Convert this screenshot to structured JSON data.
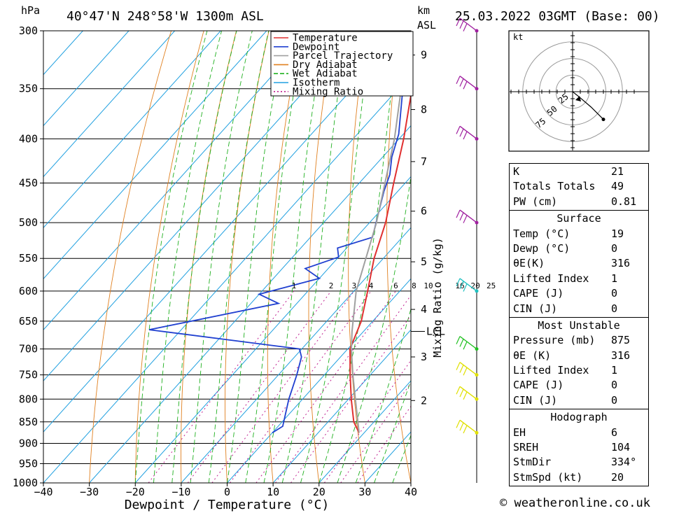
{
  "chart_data": {
    "type": "line",
    "subtype": "skew-t log-p sounding",
    "title": "40°47'N 248°58'W 1300m ASL",
    "date_text": "25.03.2022 03GMT (Base: 00)",
    "ylabel_left": "hPa",
    "ylabel_right_line1": "km",
    "ylabel_right_line2": "ASL",
    "xlabel": "Dewpoint / Temperature (°C)",
    "mixing_axis_label": "Mixing Ratio (g/kg)",
    "lcl_label": "LCL",
    "lcl_pressure": 668,
    "pressure_levels": [
      300,
      350,
      400,
      450,
      500,
      550,
      600,
      650,
      700,
      750,
      800,
      850,
      900,
      950,
      1000
    ],
    "pressure_labels": [
      "300",
      "350",
      "400",
      "450",
      "500",
      "550",
      "600",
      "650",
      "700",
      "750",
      "800",
      "850",
      "900",
      "950",
      "1000"
    ],
    "x_ticks": [
      -40,
      -30,
      -20,
      -10,
      0,
      10,
      20,
      30,
      40
    ],
    "x_tick_labels": [
      "−40",
      "−30",
      "−20",
      "−10",
      "0",
      "10",
      "20",
      "30",
      "40"
    ],
    "xlim": [
      -40,
      40
    ],
    "ylim": [
      1000,
      300
    ],
    "km_ticks": [
      {
        "km": 2,
        "p": 803,
        "label": "2"
      },
      {
        "km": 3,
        "p": 715,
        "label": "3"
      },
      {
        "km": 4,
        "p": 630,
        "label": "4"
      },
      {
        "km": 5,
        "p": 555,
        "label": "5"
      },
      {
        "km": 6,
        "p": 485,
        "label": "6"
      },
      {
        "km": 7,
        "p": 425,
        "label": "7"
      },
      {
        "km": 8,
        "p": 370,
        "label": "8"
      },
      {
        "km": 9,
        "p": 320,
        "label": "9"
      }
    ],
    "mixing_ratio_labels": [
      "1",
      "2",
      "3",
      "4",
      "6",
      "8",
      "10",
      "16",
      "20",
      "25"
    ],
    "mixing_ratios": [
      1,
      2,
      3,
      4,
      6,
      8,
      10,
      16,
      20,
      25
    ],
    "legend": [
      {
        "name": "Temperature",
        "color": "#e03030"
      },
      {
        "name": "Dewpoint",
        "color": "#2040d0"
      },
      {
        "name": "Parcel Trajectory",
        "color": "#a0a0a0"
      },
      {
        "name": "Dry Adiabat",
        "color": "#e08020"
      },
      {
        "name": "Wet Adiabat",
        "color": "#20b020"
      },
      {
        "name": "Isotherm",
        "color": "#20a0e0"
      },
      {
        "name": "Mixing Ratio",
        "color": "#c02090"
      }
    ],
    "series": [
      {
        "name": "Temperature",
        "points": [
          [
            875,
            18.9
          ],
          [
            850,
            15.6
          ],
          [
            800,
            10.6
          ],
          [
            750,
            5.6
          ],
          [
            700,
            0.5
          ],
          [
            650,
            -2.5
          ],
          [
            600,
            -7
          ],
          [
            550,
            -12
          ],
          [
            500,
            -16.5
          ],
          [
            450,
            -22.5
          ],
          [
            400,
            -29
          ],
          [
            350,
            -37
          ],
          [
            300,
            -44.5
          ]
        ]
      },
      {
        "name": "Dewpoint",
        "points": [
          [
            875,
            0
          ],
          [
            860,
            1
          ],
          [
            800,
            -3
          ],
          [
            750,
            -6
          ],
          [
            715,
            -8.5
          ],
          [
            700,
            -10.5
          ],
          [
            665,
            -47
          ],
          [
            620,
            -24
          ],
          [
            605,
            -30
          ],
          [
            580,
            -20
          ],
          [
            565,
            -25
          ],
          [
            548,
            -20
          ],
          [
            535,
            -22
          ],
          [
            520,
            -16.5
          ],
          [
            460,
            -23
          ],
          [
            440,
            -25
          ],
          [
            420,
            -28
          ],
          [
            395,
            -31
          ],
          [
            350,
            -39
          ],
          [
            303,
            -46
          ],
          [
            300,
            -47
          ]
        ]
      },
      {
        "name": "Parcel Trajectory",
        "points": [
          [
            875,
            18.9
          ],
          [
            800,
            11.5
          ],
          [
            750,
            6.2
          ],
          [
            700,
            0.8
          ],
          [
            668,
            -2.5
          ],
          [
            600,
            -9.5
          ],
          [
            500,
            -18.5
          ],
          [
            400,
            -31
          ],
          [
            300,
            -49
          ]
        ]
      }
    ],
    "wind_barbs": [
      {
        "p": 875,
        "color": "#e0e000"
      },
      {
        "p": 800,
        "color": "#e0e000"
      },
      {
        "p": 750,
        "color": "#e0e000"
      },
      {
        "p": 700,
        "color": "#20c020"
      },
      {
        "p": 600,
        "color": "#20c0c0"
      },
      {
        "p": 500,
        "color": "#a020a0"
      },
      {
        "p": 400,
        "color": "#a020a0"
      },
      {
        "p": 350,
        "color": "#a020a0"
      },
      {
        "p": 300,
        "color": "#a020a0"
      }
    ],
    "hodograph": {
      "unit_label": "kt",
      "ring_labels": [
        "25",
        "50",
        "75"
      ],
      "trace_points": [
        [
          0,
          0
        ],
        [
          5,
          -4
        ],
        [
          12,
          -10
        ],
        [
          20,
          -18
        ]
      ]
    }
  },
  "stats": {
    "general": [
      {
        "label": "K",
        "value": "21"
      },
      {
        "label": "Totals Totals",
        "value": "49"
      },
      {
        "label": "PW (cm)",
        "value": "0.81"
      }
    ],
    "surface": {
      "title": "Surface",
      "rows": [
        {
          "label": "Temp (°C)",
          "value": "19"
        },
        {
          "label": "Dewp (°C)",
          "value": "0"
        },
        {
          "label": "θE(K)",
          "value": "316"
        },
        {
          "label": "Lifted Index",
          "value": "1"
        },
        {
          "label": "CAPE (J)",
          "value": "0"
        },
        {
          "label": "CIN (J)",
          "value": "0"
        }
      ]
    },
    "most_unstable": {
      "title": "Most Unstable",
      "rows": [
        {
          "label": "Pressure (mb)",
          "value": "875"
        },
        {
          "label": "θE (K)",
          "value": "316"
        },
        {
          "label": "Lifted Index",
          "value": "1"
        },
        {
          "label": "CAPE (J)",
          "value": "0"
        },
        {
          "label": "CIN (J)",
          "value": "0"
        }
      ]
    },
    "hodograph": {
      "title": "Hodograph",
      "rows": [
        {
          "label": "EH",
          "value": "6"
        },
        {
          "label": "SREH",
          "value": "104"
        },
        {
          "label": "StmDir",
          "value": "334°"
        },
        {
          "label": "StmSpd (kt)",
          "value": "20"
        }
      ]
    }
  },
  "footer": {
    "credit": "© weatheronline.co.uk"
  }
}
